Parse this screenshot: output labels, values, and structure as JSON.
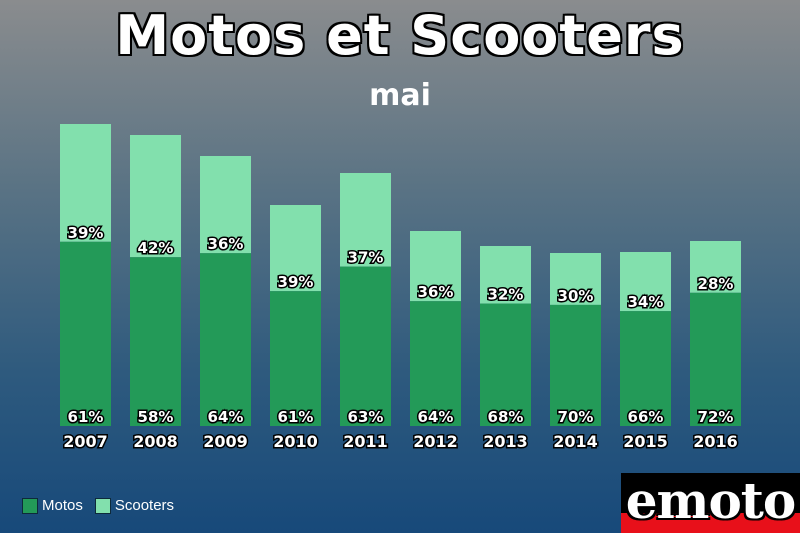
{
  "title": "Motos et Scooters",
  "subtitle": "mai",
  "colors": {
    "motos": "#239a58",
    "scooters": "#82e0ad",
    "logo_background": "#000000",
    "logo_band": "#e8101a"
  },
  "legend": [
    {
      "name": "Motos",
      "color": "#239a58"
    },
    {
      "name": "Scooters",
      "color": "#82e0ad"
    }
  ],
  "logo": {
    "text": "emoto"
  },
  "chart_data": {
    "type": "bar",
    "stacked": true,
    "title": "Motos et Scooters",
    "subtitle": "mai",
    "categories": [
      "2007",
      "2008",
      "2009",
      "2010",
      "2011",
      "2012",
      "2013",
      "2014",
      "2015",
      "2016"
    ],
    "series": [
      {
        "name": "Motos",
        "percent_labels": [
          "61%",
          "58%",
          "64%",
          "61%",
          "63%",
          "64%",
          "68%",
          "70%",
          "66%",
          "72%"
        ]
      },
      {
        "name": "Scooters",
        "percent_labels": [
          "39%",
          "42%",
          "36%",
          "39%",
          "37%",
          "36%",
          "32%",
          "30%",
          "34%",
          "28%"
        ]
      }
    ],
    "totals_relative": [
      302,
      291,
      270,
      221,
      253,
      195,
      180,
      173,
      174,
      185
    ],
    "motos_share": [
      0.61,
      0.58,
      0.64,
      0.61,
      0.63,
      0.64,
      0.68,
      0.7,
      0.66,
      0.72
    ],
    "legend_position": "bottom-left",
    "grid": false,
    "yaxis_visible": false
  }
}
